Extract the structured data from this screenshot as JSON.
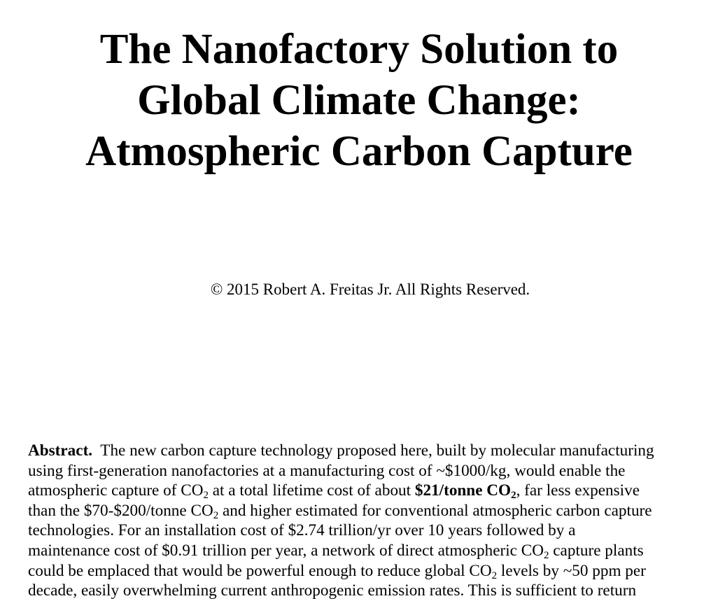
{
  "title": {
    "line1": "The Nanofactory Solution to",
    "line2": "Global Climate Change:",
    "line3": "Atmospheric Carbon Capture"
  },
  "copyright": "© 2015 Robert A. Freitas Jr. All Rights Reserved.",
  "abstract": {
    "label": "Abstract.",
    "l1": "The new carbon capture technology proposed here, built by molecular manufacturing",
    "l2": "using first-generation nanofactories at a manufacturing cost of ~$1000/kg, would enable the",
    "l3a": "atmospheric capture of CO",
    "l3b": " at a total lifetime cost of about ",
    "l3bold": "$21/tonne CO",
    "l3c": ", far less expensive",
    "l4a": "than the $70-$200/tonne CO",
    "l4b": " and higher estimated for conventional atmospheric carbon capture",
    "l5": "technologies.  For an installation cost of $2.74 trillion/yr over 10 years followed by a",
    "l6a": "maintenance cost of $0.91 trillion per year, a network of direct atmospheric CO",
    "l6b": " capture plants",
    "l7a": "could be emplaced that would be powerful enough to reduce global CO",
    "l7b": " levels by ~50 ppm per",
    "l8": "decade, easily overwhelming current anthropogenic emission rates.  This is sufficient to return",
    "sub": "2"
  }
}
